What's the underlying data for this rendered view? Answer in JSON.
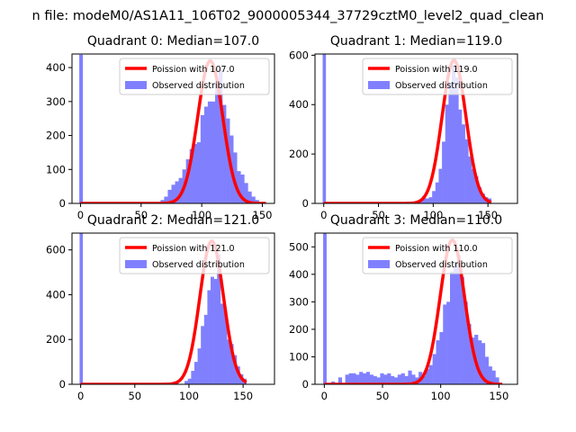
{
  "figure": {
    "suptitle": "n file: modeM0/AS1A11_106T02_9000005344_37729cztM0_level2_quad_clean"
  },
  "colors": {
    "poisson": "#ff0000",
    "observed": "#8080ff"
  },
  "chart_data": [
    {
      "type": "bar",
      "title": "Quadrant 0: Median=107.0",
      "median": 107.0,
      "xlim": [
        -7,
        160
      ],
      "ylim": [
        0,
        440
      ],
      "xticks": [
        0,
        50,
        100,
        150
      ],
      "yticks": [
        0,
        100,
        200,
        300,
        400
      ],
      "grid": false,
      "legend_position": "top-right",
      "poisson_peak": 420,
      "series": [
        {
          "name": "Poission with 107.0",
          "kind": "line"
        },
        {
          "name": "Observed distribution",
          "kind": "histogram",
          "x_start": 0,
          "x_end": 147,
          "bin_width": 3,
          "x_range": [
            -1,
            2
          ],
          "values": [
            438,
            0,
            0,
            0,
            0,
            0,
            0,
            0,
            0,
            0,
            0,
            0,
            0,
            0,
            0,
            0,
            0,
            0,
            0,
            0,
            0,
            0,
            0,
            0,
            0,
            0,
            0,
            0,
            0,
            0,
            0,
            0,
            0,
            0,
            0,
            0,
            0,
            0,
            0,
            0,
            0,
            0,
            0,
            0,
            0,
            0,
            0,
            0,
            0,
            0,
            0,
            0,
            0,
            0,
            0,
            0,
            0,
            0,
            0,
            0,
            0,
            0,
            0,
            0,
            0,
            0,
            0,
            0,
            0,
            0,
            0,
            0,
            0,
            0,
            0,
            0,
            0,
            0,
            0,
            0,
            0,
            0,
            0,
            0,
            0,
            0,
            0,
            0,
            0,
            0,
            0,
            0,
            0,
            0,
            0,
            0,
            0,
            0,
            0,
            0
          ]
        }
      ],
      "hist_bins": [
        {
          "x": 66,
          "v": 10
        },
        {
          "x": 69,
          "v": 20
        },
        {
          "x": 72,
          "v": 40
        },
        {
          "x": 75,
          "v": 55
        },
        {
          "x": 78,
          "v": 65
        },
        {
          "x": 81,
          "v": 75
        },
        {
          "x": 84,
          "v": 100
        },
        {
          "x": 87,
          "v": 130
        },
        {
          "x": 90,
          "v": 160
        },
        {
          "x": 93,
          "v": 175
        },
        {
          "x": 96,
          "v": 180
        },
        {
          "x": 99,
          "v": 260
        },
        {
          "x": 102,
          "v": 285
        },
        {
          "x": 105,
          "v": 300
        },
        {
          "x": 108,
          "v": 300
        },
        {
          "x": 111,
          "v": 355
        },
        {
          "x": 114,
          "v": 395
        },
        {
          "x": 117,
          "v": 290
        },
        {
          "x": 120,
          "v": 250
        },
        {
          "x": 123,
          "v": 200
        },
        {
          "x": 126,
          "v": 150
        },
        {
          "x": 129,
          "v": 95
        },
        {
          "x": 132,
          "v": 85
        },
        {
          "x": 135,
          "v": 60
        },
        {
          "x": 138,
          "v": 35
        },
        {
          "x": 141,
          "v": 20
        },
        {
          "x": 144,
          "v": 10
        }
      ]
    },
    {
      "type": "bar",
      "title": "Quadrant 1: Median=119.0",
      "median": 119.0,
      "xlim": [
        -8,
        177
      ],
      "ylim": [
        0,
        605
      ],
      "xticks": [
        0,
        50,
        100,
        150
      ],
      "yticks": [
        0,
        200,
        400,
        600
      ],
      "grid": false,
      "legend_position": "top-right",
      "poisson_peak": 580,
      "series": [
        {
          "name": "Poission with 119.0",
          "kind": "line"
        },
        {
          "name": "Observed distribution",
          "kind": "histogram"
        }
      ],
      "zero_bin": 605,
      "hist_bins": [
        {
          "x": 84,
          "v": 10
        },
        {
          "x": 87,
          "v": 15
        },
        {
          "x": 90,
          "v": 30
        },
        {
          "x": 93,
          "v": 20
        },
        {
          "x": 96,
          "v": 25
        },
        {
          "x": 99,
          "v": 50
        },
        {
          "x": 102,
          "v": 85
        },
        {
          "x": 105,
          "v": 140
        },
        {
          "x": 108,
          "v": 250
        },
        {
          "x": 111,
          "v": 400
        },
        {
          "x": 114,
          "v": 490
        },
        {
          "x": 117,
          "v": 560
        },
        {
          "x": 120,
          "v": 510
        },
        {
          "x": 123,
          "v": 380
        },
        {
          "x": 126,
          "v": 320
        },
        {
          "x": 129,
          "v": 260
        },
        {
          "x": 132,
          "v": 190
        },
        {
          "x": 135,
          "v": 140
        },
        {
          "x": 138,
          "v": 110
        },
        {
          "x": 141,
          "v": 65
        },
        {
          "x": 144,
          "v": 40
        },
        {
          "x": 147,
          "v": 25
        },
        {
          "x": 150,
          "v": 20
        }
      ]
    },
    {
      "type": "bar",
      "title": "Quadrant 2: Median=121.0",
      "median": 121.0,
      "xlim": [
        -8,
        179
      ],
      "ylim": [
        0,
        675
      ],
      "xticks": [
        0,
        50,
        100,
        150
      ],
      "yticks": [
        0,
        200,
        400,
        600
      ],
      "grid": false,
      "legend_position": "top-right",
      "poisson_peak": 640,
      "series": [
        {
          "name": "Poission with 121.0",
          "kind": "line"
        },
        {
          "name": "Observed distribution",
          "kind": "histogram"
        }
      ],
      "zero_bin": 675,
      "hist_bins": [
        {
          "x": 75,
          "v": 5
        },
        {
          "x": 87,
          "v": 10
        },
        {
          "x": 96,
          "v": 15
        },
        {
          "x": 99,
          "v": 25
        },
        {
          "x": 102,
          "v": 60
        },
        {
          "x": 105,
          "v": 100
        },
        {
          "x": 108,
          "v": 160
        },
        {
          "x": 111,
          "v": 260
        },
        {
          "x": 114,
          "v": 310
        },
        {
          "x": 117,
          "v": 420
        },
        {
          "x": 120,
          "v": 480
        },
        {
          "x": 123,
          "v": 470
        },
        {
          "x": 126,
          "v": 580
        },
        {
          "x": 129,
          "v": 360
        },
        {
          "x": 132,
          "v": 330
        },
        {
          "x": 135,
          "v": 200
        },
        {
          "x": 138,
          "v": 180
        },
        {
          "x": 141,
          "v": 130
        },
        {
          "x": 144,
          "v": 80
        },
        {
          "x": 147,
          "v": 45
        },
        {
          "x": 150,
          "v": 25
        }
      ]
    },
    {
      "type": "bar",
      "title": "Quadrant 3: Median=110.0",
      "median": 110.0,
      "xlim": [
        -8,
        166
      ],
      "ylim": [
        0,
        550
      ],
      "xticks": [
        0,
        50,
        100,
        150
      ],
      "yticks": [
        0,
        100,
        200,
        300,
        400,
        500
      ],
      "grid": false,
      "legend_position": "top-right",
      "poisson_peak": 525,
      "series": [
        {
          "name": "Poission with 110.0",
          "kind": "line"
        },
        {
          "name": "Observed distribution",
          "kind": "histogram"
        }
      ],
      "zero_bin": 550,
      "hist_bins": [
        {
          "x": 6,
          "v": 10
        },
        {
          "x": 12,
          "v": 25
        },
        {
          "x": 18,
          "v": 35
        },
        {
          "x": 21,
          "v": 40
        },
        {
          "x": 24,
          "v": 40
        },
        {
          "x": 27,
          "v": 35
        },
        {
          "x": 30,
          "v": 45
        },
        {
          "x": 33,
          "v": 40
        },
        {
          "x": 36,
          "v": 45
        },
        {
          "x": 39,
          "v": 35
        },
        {
          "x": 42,
          "v": 30
        },
        {
          "x": 45,
          "v": 25
        },
        {
          "x": 48,
          "v": 40
        },
        {
          "x": 51,
          "v": 35
        },
        {
          "x": 54,
          "v": 40
        },
        {
          "x": 57,
          "v": 30
        },
        {
          "x": 60,
          "v": 25
        },
        {
          "x": 63,
          "v": 35
        },
        {
          "x": 66,
          "v": 40
        },
        {
          "x": 69,
          "v": 30
        },
        {
          "x": 72,
          "v": 50
        },
        {
          "x": 75,
          "v": 35
        },
        {
          "x": 78,
          "v": 25
        },
        {
          "x": 81,
          "v": 45
        },
        {
          "x": 84,
          "v": 30
        },
        {
          "x": 87,
          "v": 55
        },
        {
          "x": 90,
          "v": 70
        },
        {
          "x": 93,
          "v": 110
        },
        {
          "x": 96,
          "v": 160
        },
        {
          "x": 99,
          "v": 190
        },
        {
          "x": 102,
          "v": 290
        },
        {
          "x": 105,
          "v": 300
        },
        {
          "x": 108,
          "v": 410
        },
        {
          "x": 111,
          "v": 440
        },
        {
          "x": 114,
          "v": 470
        },
        {
          "x": 117,
          "v": 390
        },
        {
          "x": 120,
          "v": 300
        },
        {
          "x": 123,
          "v": 220
        },
        {
          "x": 126,
          "v": 170
        },
        {
          "x": 129,
          "v": 180
        },
        {
          "x": 132,
          "v": 160
        },
        {
          "x": 135,
          "v": 150
        },
        {
          "x": 138,
          "v": 100
        },
        {
          "x": 141,
          "v": 65
        },
        {
          "x": 144,
          "v": 50
        },
        {
          "x": 147,
          "v": 25
        }
      ]
    }
  ]
}
